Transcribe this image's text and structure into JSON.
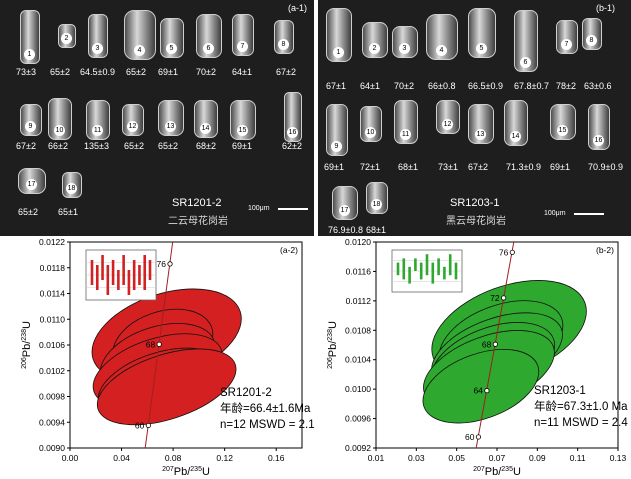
{
  "left_top": {
    "tag": "(a-1)",
    "sample": "SR1201-2",
    "rock": "二云母花岗岩",
    "scale": "100μm",
    "grains": [
      {
        "n": "1",
        "age": "73±3"
      },
      {
        "n": "2",
        "age": "65±2"
      },
      {
        "n": "3",
        "age": "64.5±0.9"
      },
      {
        "n": "4",
        "age": "65±2"
      },
      {
        "n": "5",
        "age": "69±1"
      },
      {
        "n": "6",
        "age": "70±2"
      },
      {
        "n": "7",
        "age": "64±1"
      },
      {
        "n": "8",
        "age": "67±2"
      },
      {
        "n": "9",
        "age": "67±2"
      },
      {
        "n": "10",
        "age": "66±2"
      },
      {
        "n": "11",
        "age": "135±3"
      },
      {
        "n": "12",
        "age": "65±2"
      },
      {
        "n": "13",
        "age": "65±2"
      },
      {
        "n": "14",
        "age": "68±2"
      },
      {
        "n": "15",
        "age": "69±1"
      },
      {
        "n": "16",
        "age": "62±2"
      },
      {
        "n": "17",
        "age": "65±2"
      },
      {
        "n": "18",
        "age": "65±1"
      }
    ]
  },
  "right_top": {
    "tag": "(b-1)",
    "sample": "SR1203-1",
    "rock": "黑云母花岗岩",
    "scale": "100μm",
    "grains": [
      {
        "n": "1",
        "age": "67±1"
      },
      {
        "n": "2",
        "age": "64±1"
      },
      {
        "n": "3",
        "age": "70±2"
      },
      {
        "n": "4",
        "age": "66±0.8"
      },
      {
        "n": "5",
        "age": "66.5±0.9"
      },
      {
        "n": "6",
        "age": "67.8±0.7"
      },
      {
        "n": "7",
        "age": "78±2"
      },
      {
        "n": "8",
        "age": "63±0.6"
      },
      {
        "n": "9",
        "age": "69±1"
      },
      {
        "n": "10",
        "age": "72±1"
      },
      {
        "n": "11",
        "age": "68±1"
      },
      {
        "n": "12",
        "age": "73±1"
      },
      {
        "n": "13",
        "age": "67±2"
      },
      {
        "n": "14",
        "age": "71.3±0.9"
      },
      {
        "n": "15",
        "age": "69±1"
      },
      {
        "n": "16",
        "age": "70.9±0.9"
      },
      {
        "n": "17",
        "age": "76.9±0.8"
      },
      {
        "n": "18",
        "age": "68±1"
      }
    ]
  },
  "chart_data": [
    {
      "type": "scatter",
      "panel": "(a-2)",
      "xlabel_parts": [
        "207",
        "Pb/",
        "235",
        "U"
      ],
      "ylabel_parts": [
        "206",
        "Pb/",
        "238",
        "U"
      ],
      "xlim": [
        0.0,
        0.18
      ],
      "ylim": [
        0.009,
        0.0122
      ],
      "xticks": [
        "0.00",
        "0.04",
        "0.08",
        "0.12",
        "0.16"
      ],
      "yticks": [
        "0.0090",
        "0.0094",
        "0.0098",
        "0.0102",
        "0.0106",
        "0.0110",
        "0.0114",
        "0.0118",
        "0.0122"
      ],
      "concordia_labels": [
        {
          "label": "76",
          "x": 0.0776,
          "y": 0.01186
        },
        {
          "label": "68",
          "x": 0.0692,
          "y": 0.01061
        },
        {
          "label": "60",
          "x": 0.0608,
          "y": 0.00935
        }
      ],
      "ellipse_color": "#d42020",
      "ellipses": [
        {
          "x": 0.075,
          "y": 0.01075,
          "rx": 0.06,
          "ry": 0.00065
        },
        {
          "x": 0.072,
          "y": 0.01062,
          "rx": 0.04,
          "ry": 0.0005
        },
        {
          "x": 0.068,
          "y": 0.01038,
          "rx": 0.046,
          "ry": 0.0005
        },
        {
          "x": 0.068,
          "y": 0.0102,
          "rx": 0.052,
          "ry": 0.0005
        },
        {
          "x": 0.07,
          "y": 0.01,
          "rx": 0.05,
          "ry": 0.00048
        },
        {
          "x": 0.075,
          "y": 0.00995,
          "rx": 0.056,
          "ry": 0.0005
        }
      ],
      "annotation": [
        "SR1201-2",
        "年龄=66.4±1.6Ma",
        "n=12  MSWD = 2.1"
      ],
      "inset_bars": [
        [
          0.3,
          0.8
        ],
        [
          0.2,
          0.7
        ],
        [
          0.4,
          0.9
        ],
        [
          0.1,
          0.7
        ],
        [
          0.3,
          0.8
        ],
        [
          0.2,
          0.6
        ],
        [
          0.3,
          0.9
        ],
        [
          0.1,
          0.6
        ],
        [
          0.2,
          0.8
        ],
        [
          0.3,
          0.7
        ],
        [
          0.2,
          0.9
        ],
        [
          0.4,
          0.8
        ]
      ]
    },
    {
      "type": "scatter",
      "panel": "(b-2)",
      "xlabel_parts": [
        "207",
        "Pb/",
        "235",
        "U"
      ],
      "ylabel_parts": [
        "206",
        "Pb/",
        "238",
        "U"
      ],
      "xlim": [
        0.01,
        0.13
      ],
      "ylim": [
        0.0092,
        0.012
      ],
      "xticks": [
        "0.01",
        "0.03",
        "0.05",
        "0.07",
        "0.09",
        "0.11",
        "0.13"
      ],
      "yticks": [
        "0.0092",
        "0.0096",
        "0.0100",
        "0.0104",
        "0.0108",
        "0.0112",
        "0.0116",
        "0.0120"
      ],
      "concordia_labels": [
        {
          "label": "76",
          "x": 0.0776,
          "y": 0.01186
        },
        {
          "label": "72",
          "x": 0.0733,
          "y": 0.01124
        },
        {
          "label": "68",
          "x": 0.0692,
          "y": 0.01061
        },
        {
          "label": "64",
          "x": 0.065,
          "y": 0.00998
        },
        {
          "label": "60",
          "x": 0.0608,
          "y": 0.00935
        }
      ],
      "ellipse_color": "#2ea82e",
      "ellipses": [
        {
          "x": 0.076,
          "y": 0.0108,
          "rx": 0.04,
          "ry": 0.0006
        },
        {
          "x": 0.072,
          "y": 0.01066,
          "rx": 0.032,
          "ry": 0.00048
        },
        {
          "x": 0.07,
          "y": 0.0105,
          "rx": 0.034,
          "ry": 0.00046
        },
        {
          "x": 0.068,
          "y": 0.01038,
          "rx": 0.032,
          "ry": 0.00046
        },
        {
          "x": 0.066,
          "y": 0.01026,
          "rx": 0.034,
          "ry": 0.00046
        },
        {
          "x": 0.062,
          "y": 0.01004,
          "rx": 0.03,
          "ry": 0.00044
        }
      ],
      "annotation": [
        "SR1203-1",
        "年龄=67.3±1.0 Ma",
        "n=11  MSWD = 2.4"
      ],
      "inset_bars": [
        [
          0.4,
          0.7
        ],
        [
          0.3,
          0.8
        ],
        [
          0.2,
          0.6
        ],
        [
          0.5,
          0.8
        ],
        [
          0.3,
          0.7
        ],
        [
          0.4,
          0.9
        ],
        [
          0.2,
          0.7
        ],
        [
          0.4,
          0.8
        ],
        [
          0.3,
          0.6
        ],
        [
          0.4,
          0.9
        ],
        [
          0.3,
          0.7
        ]
      ]
    }
  ]
}
